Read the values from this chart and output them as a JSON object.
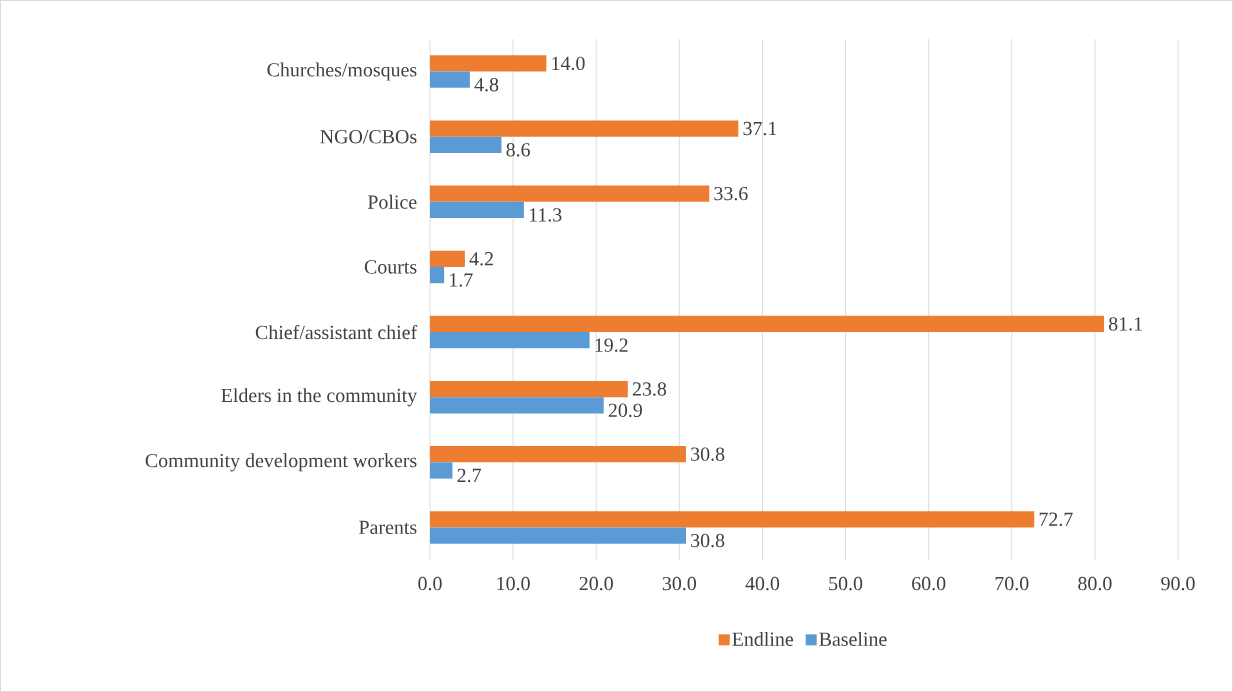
{
  "chart_data": {
    "type": "bar",
    "orientation": "horizontal",
    "categories": [
      "Churches/mosques",
      "NGO/CBOs",
      "Police",
      "Courts",
      "Chief/assistant chief",
      "Elders in the community",
      "Community development workers",
      "Parents"
    ],
    "series": [
      {
        "name": "Endline",
        "color": "#ed7d31",
        "values": [
          14.0,
          37.1,
          33.6,
          4.2,
          81.1,
          23.8,
          30.8,
          72.7
        ],
        "value_labels": [
          "14.0",
          "37.1",
          "33.6",
          "4.2",
          "81.1",
          "23.8",
          "30.8",
          "72.7"
        ]
      },
      {
        "name": "Baseline",
        "color": "#5b9bd5",
        "values": [
          4.8,
          8.6,
          11.3,
          1.7,
          19.2,
          20.9,
          2.7,
          30.8
        ],
        "value_labels": [
          "4.8",
          "8.6",
          "11.3",
          "1.7",
          "19.2",
          "20.9",
          "2.7",
          "30.8"
        ]
      }
    ],
    "xlim": [
      0,
      90
    ],
    "xticks": [
      {
        "value": 0,
        "label": "0.0"
      },
      {
        "value": 10,
        "label": "10.0"
      },
      {
        "value": 20,
        "label": "20.0"
      },
      {
        "value": 30,
        "label": "30.0"
      },
      {
        "value": 40,
        "label": "40.0"
      },
      {
        "value": 50,
        "label": "50.0"
      },
      {
        "value": 60,
        "label": "60.0"
      },
      {
        "value": 70,
        "label": "70.0"
      },
      {
        "value": 80,
        "label": "80.0"
      },
      {
        "value": 90,
        "label": "90.0"
      }
    ],
    "grid": "x",
    "legend": "bottom"
  }
}
